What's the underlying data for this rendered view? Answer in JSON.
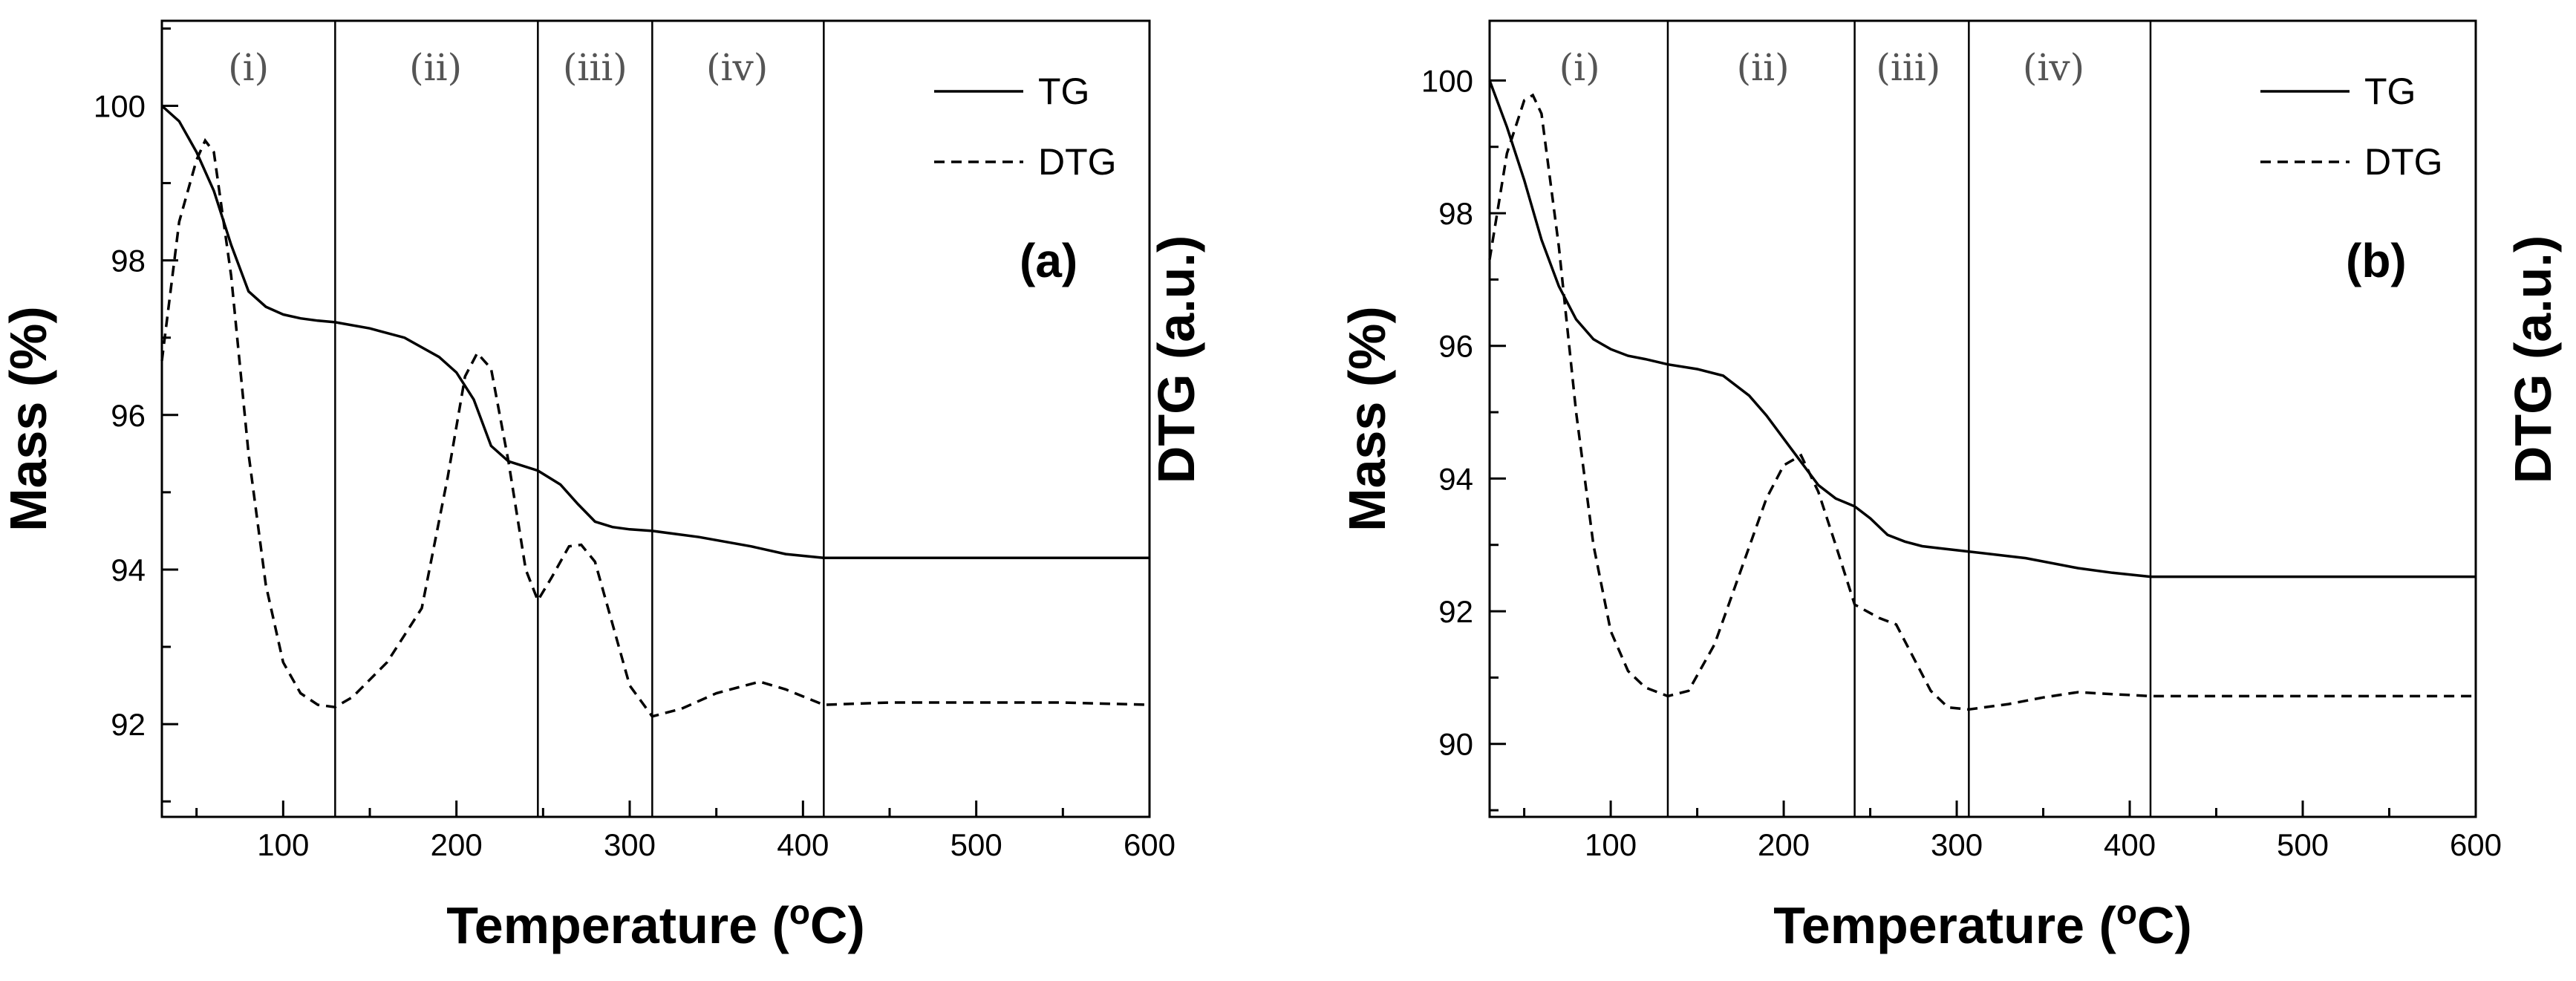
{
  "chart_data": [
    {
      "type": "line",
      "panel_label": "(a)",
      "xlabel_prefix": "Temperature (",
      "xlabel_sup": "o",
      "xlabel_suffix": "C)",
      "ylabel": "Mass (%)",
      "ylabel_right": "DTG (a.u.)",
      "xlim": [
        30,
        600
      ],
      "ylim": [
        90.8,
        101.1
      ],
      "x_ticks": [
        100,
        200,
        300,
        400,
        500,
        600
      ],
      "y_ticks": [
        92,
        94,
        96,
        98,
        100
      ],
      "region_boundaries": [
        130,
        247,
        313,
        412
      ],
      "regions": [
        {
          "label": "(i)",
          "x": 80
        },
        {
          "label": "(ii)",
          "x": 188
        },
        {
          "label": "(iii)",
          "x": 280
        },
        {
          "label": "(iv)",
          "x": 362
        }
      ],
      "legend": {
        "position": "top-right",
        "entries": [
          "TG",
          "DTG"
        ]
      },
      "series": [
        {
          "name": "TG",
          "style": "solid",
          "x": [
            30,
            40,
            50,
            60,
            70,
            80,
            90,
            100,
            110,
            120,
            130,
            150,
            170,
            190,
            200,
            210,
            220,
            230,
            247,
            260,
            270,
            280,
            290,
            300,
            313,
            340,
            370,
            390,
            412,
            600
          ],
          "y": [
            100.0,
            99.8,
            99.4,
            98.9,
            98.2,
            97.6,
            97.4,
            97.3,
            97.25,
            97.22,
            97.2,
            97.12,
            97.0,
            96.75,
            96.55,
            96.2,
            95.6,
            95.4,
            95.28,
            95.1,
            94.85,
            94.62,
            94.55,
            94.52,
            94.5,
            94.42,
            94.3,
            94.2,
            94.15,
            94.15
          ]
        },
        {
          "name": "DTG",
          "style": "dashed",
          "x": [
            30,
            40,
            50,
            55,
            60,
            70,
            80,
            90,
            100,
            110,
            120,
            130,
            140,
            160,
            180,
            195,
            205,
            212,
            220,
            230,
            240,
            247,
            255,
            265,
            272,
            280,
            290,
            300,
            313,
            330,
            350,
            375,
            390,
            412,
            450,
            500,
            550,
            600
          ],
          "y": [
            96.7,
            98.5,
            99.3,
            99.55,
            99.4,
            97.8,
            95.5,
            93.8,
            92.8,
            92.4,
            92.25,
            92.22,
            92.35,
            92.8,
            93.5,
            95.2,
            96.5,
            96.8,
            96.6,
            95.4,
            94.0,
            93.6,
            93.9,
            94.3,
            94.32,
            94.1,
            93.3,
            92.5,
            92.1,
            92.2,
            92.4,
            92.55,
            92.45,
            92.25,
            92.28,
            92.28,
            92.28,
            92.25
          ]
        }
      ]
    },
    {
      "type": "line",
      "panel_label": "(b)",
      "xlabel_prefix": "Temperature (",
      "xlabel_sup": "o",
      "xlabel_suffix": "C)",
      "ylabel": "Mass (%)",
      "ylabel_right": "DTG (a.u.)",
      "xlim": [
        30,
        600
      ],
      "ylim": [
        88.9,
        100.9
      ],
      "x_ticks": [
        100,
        200,
        300,
        400,
        500,
        600
      ],
      "y_ticks": [
        90,
        92,
        94,
        96,
        98,
        100
      ],
      "region_boundaries": [
        133,
        241,
        307,
        412
      ],
      "regions": [
        {
          "label": "(i)",
          "x": 82
        },
        {
          "label": "(ii)",
          "x": 188
        },
        {
          "label": "(iii)",
          "x": 272
        },
        {
          "label": "(iv)",
          "x": 356
        }
      ],
      "legend": {
        "position": "top-right",
        "entries": [
          "TG",
          "DTG"
        ]
      },
      "series": [
        {
          "name": "TG",
          "style": "solid",
          "x": [
            30,
            40,
            50,
            60,
            70,
            80,
            90,
            100,
            110,
            120,
            133,
            150,
            165,
            180,
            190,
            200,
            210,
            220,
            230,
            241,
            250,
            260,
            270,
            280,
            290,
            307,
            340,
            370,
            390,
            412,
            600
          ],
          "y": [
            100.0,
            99.3,
            98.5,
            97.6,
            96.9,
            96.4,
            96.1,
            95.95,
            95.85,
            95.8,
            95.72,
            95.65,
            95.55,
            95.25,
            94.95,
            94.6,
            94.25,
            93.9,
            93.7,
            93.58,
            93.4,
            93.15,
            93.05,
            92.98,
            92.95,
            92.9,
            92.8,
            92.65,
            92.58,
            92.52,
            92.52
          ]
        },
        {
          "name": "DTG",
          "style": "dashed",
          "x": [
            30,
            40,
            50,
            55,
            60,
            70,
            80,
            90,
            100,
            110,
            120,
            133,
            145,
            160,
            175,
            190,
            200,
            210,
            220,
            230,
            241,
            255,
            265,
            275,
            285,
            295,
            307,
            330,
            350,
            370,
            390,
            412,
            450,
            500,
            550,
            600
          ],
          "y": [
            97.3,
            98.9,
            99.7,
            99.78,
            99.5,
            97.5,
            95.0,
            93.0,
            91.7,
            91.1,
            90.85,
            90.72,
            90.8,
            91.5,
            92.6,
            93.7,
            94.2,
            94.35,
            93.8,
            93.0,
            92.1,
            91.9,
            91.8,
            91.3,
            90.8,
            90.55,
            90.52,
            90.6,
            90.7,
            90.78,
            90.75,
            90.72,
            90.72,
            90.72,
            90.72,
            90.72
          ]
        }
      ]
    }
  ]
}
